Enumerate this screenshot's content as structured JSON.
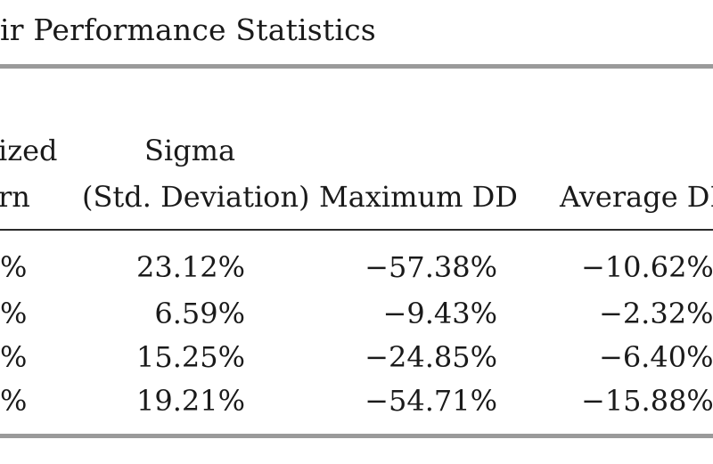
{
  "title": "ir Performance Statistics",
  "headers": {
    "col1_line1": "ized",
    "col1_line2": "rn",
    "col2_line1": "Sigma",
    "col2_line2": "(Std. Deviation)",
    "col3_line2": "Maximum DD",
    "col4_line2": "Average DI"
  },
  "rows": [
    {
      "c1": "%",
      "sigma": "23.12%",
      "max_dd": "−57.38%",
      "avg_dd": "−10.62%"
    },
    {
      "c1": "%",
      "sigma": "6.59%",
      "max_dd": "−9.43%",
      "avg_dd": "−2.32%"
    },
    {
      "c1": "%",
      "sigma": "15.25%",
      "max_dd": "−24.85%",
      "avg_dd": "−6.40%"
    },
    {
      "c1": "%",
      "sigma": "19.21%",
      "max_dd": "−54.71%",
      "avg_dd": "−15.88%"
    }
  ]
}
